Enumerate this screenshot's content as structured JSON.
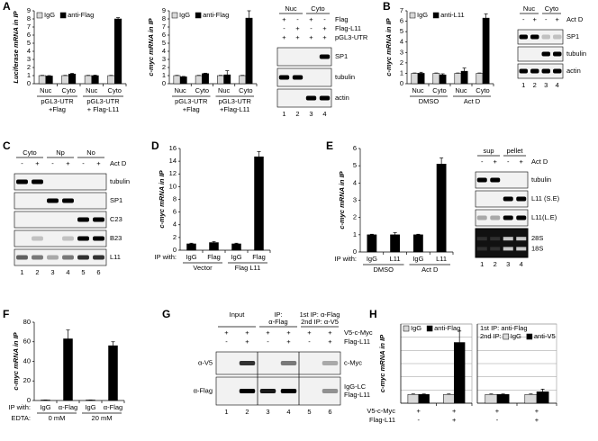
{
  "panel_letters": [
    "A",
    "B",
    "C",
    "D",
    "E",
    "F",
    "G",
    "H"
  ],
  "chart_data": [
    {
      "type": "bar",
      "y_label": "Luciferase mRNA in IP",
      "categories": [
        "Nuc",
        "Cyto",
        "Nuc",
        "Cyto"
      ],
      "group_labels": [
        [
          "pGL3-UTR",
          "+Flag"
        ],
        [
          "pGL3-UTR",
          "+ Flag-L11"
        ]
      ],
      "series": [
        {
          "name": "IgG",
          "color": "#d9d9d9",
          "values": [
            1,
            1,
            1,
            1
          ],
          "errors": [
            0.03,
            0.03,
            0.03,
            0.03
          ]
        },
        {
          "name": "anti-Flag",
          "color": "#000000",
          "values": [
            0.95,
            1.2,
            1.0,
            8.0
          ],
          "errors": [
            0.05,
            0.08,
            0.06,
            0.15
          ]
        }
      ],
      "ylim": [
        0,
        9
      ],
      "yticks": [
        0,
        1,
        2,
        3,
        4,
        5,
        6,
        7,
        8,
        9
      ]
    },
    {
      "type": "bar",
      "y_label": "c-myc mRNA in IP",
      "categories": [
        "Nuc",
        "Cyto",
        "Nuc",
        "Cyto"
      ],
      "group_labels": [
        [
          "pGL3-UTR",
          "+Flag"
        ],
        [
          "pGL3-UTR",
          "+Flag-L11"
        ]
      ],
      "series": [
        {
          "name": "IgG",
          "color": "#d9d9d9",
          "values": [
            1,
            1,
            1,
            1
          ],
          "errors": [
            0.03,
            0.03,
            0.03,
            0.03
          ]
        },
        {
          "name": "anti-Flag",
          "color": "#000000",
          "values": [
            0.85,
            1.25,
            1.1,
            8.1
          ],
          "errors": [
            0.05,
            0.05,
            0.5,
            0.9
          ]
        }
      ],
      "ylim": [
        0,
        9
      ],
      "yticks": [
        0,
        1,
        2,
        3,
        4,
        5,
        6,
        7,
        8,
        9
      ]
    },
    {
      "type": "bar",
      "y_label": "c-myc mRNA in IP",
      "categories": [
        "Nuc",
        "Cyto",
        "Nuc",
        "Cyto"
      ],
      "group_labels": [
        [
          "DMSO"
        ],
        [
          "Act D"
        ]
      ],
      "series": [
        {
          "name": "IgG",
          "color": "#d9d9d9",
          "values": [
            1,
            1,
            1,
            1
          ],
          "errors": [
            0.03,
            0.03,
            0.03,
            0.03
          ]
        },
        {
          "name": "anti-L11",
          "color": "#000000",
          "values": [
            1.0,
            0.85,
            1.2,
            6.3
          ],
          "errors": [
            0.1,
            0.1,
            0.3,
            0.4
          ]
        }
      ],
      "ylim": [
        0,
        7
      ],
      "yticks": [
        0,
        1,
        2,
        3,
        4,
        5,
        6,
        7
      ]
    },
    {
      "type": "bar",
      "y_label": "c-myc mRNA in IP",
      "row_label": "IP with:",
      "categories": [
        "IgG",
        "Flag",
        "IgG",
        "Flag"
      ],
      "group_labels": [
        [
          "Vector"
        ],
        [
          "Flag L11"
        ]
      ],
      "series": [
        {
          "color": "#000000",
          "values": [
            1,
            1.2,
            1,
            14.7
          ],
          "errors": [
            0.1,
            0.15,
            0.1,
            0.8
          ]
        }
      ],
      "ylim": [
        0,
        16
      ],
      "yticks": [
        0,
        2,
        4,
        6,
        8,
        10,
        12,
        14,
        16
      ]
    },
    {
      "type": "bar",
      "y_label": "c-myc mRNA in IP",
      "row_label": "IP with:",
      "categories": [
        "IgG",
        "L11",
        "IgG",
        "L11"
      ],
      "group_labels": [
        [
          "DMSO"
        ],
        [
          "Act D"
        ]
      ],
      "series": [
        {
          "color": "#000000",
          "values": [
            1,
            1,
            1,
            5.1
          ],
          "errors": [
            0.03,
            0.12,
            0.03,
            0.35
          ]
        }
      ],
      "ylim": [
        0,
        6
      ],
      "yticks": [
        0,
        1,
        2,
        3,
        4,
        5,
        6
      ]
    },
    {
      "type": "bar",
      "y_label": "c-myc mRNA in IP",
      "row_label": "IP with:",
      "group_prefix": "EDTA:",
      "categories": [
        "IgG",
        "α-Flag",
        "IgG",
        "α-Flag"
      ],
      "group_labels": [
        [
          "0 mM"
        ],
        [
          "20 mM"
        ]
      ],
      "series": [
        {
          "color": "#000000",
          "values": [
            0.5,
            63,
            0.5,
            56
          ],
          "errors": [
            0.1,
            9,
            0.1,
            4
          ]
        }
      ],
      "ylim": [
        0,
        80
      ],
      "yticks": [
        0,
        20,
        40,
        60,
        80
      ]
    },
    {
      "type": "bar",
      "y_label": "c-myc mRNA in IP",
      "categories": [
        null,
        null
      ],
      "show_tick_labels": false,
      "grid": true,
      "rows": [
        {
          "label": "V5-c-Myc",
          "values": [
            "+",
            "+"
          ]
        },
        {
          "label": "Flag-L11",
          "values": [
            "-",
            "+"
          ]
        }
      ],
      "series": [
        {
          "name": "IgG",
          "color": "#d9d9d9",
          "values": [
            1,
            1
          ],
          "errors": [
            0.05,
            0.05
          ]
        },
        {
          "name": "anti-Flag",
          "color": "#000000",
          "values": [
            1,
            6.9
          ],
          "errors": [
            0.05,
            1.3
          ]
        }
      ],
      "ylim": [
        0,
        9
      ],
      "yticks": [
        0,
        1.5,
        3,
        4.5,
        6,
        7.5,
        9
      ]
    },
    {
      "type": "bar",
      "categories": [
        null,
        null
      ],
      "show_tick_labels": false,
      "grid": true,
      "legend_title": "1st IP: anti-Flag",
      "legend_prefix": "2nd IP:",
      "rows": [
        {
          "values": [
            "+",
            "+"
          ]
        },
        {
          "values": [
            "-",
            "+"
          ]
        }
      ],
      "series": [
        {
          "name": "IgG",
          "color": "#d9d9d9",
          "values": [
            1,
            1
          ],
          "errors": [
            0.05,
            0.05
          ]
        },
        {
          "name": "anti-V5",
          "color": "#000000",
          "values": [
            1,
            1.3
          ],
          "errors": [
            0.05,
            0.3
          ]
        }
      ],
      "ylim": [
        0,
        9
      ],
      "yticks": [
        0,
        1.5,
        3,
        4.5,
        6,
        7.5,
        9
      ]
    }
  ],
  "blots": [
    {
      "headers": [
        [
          "Nuc"
        ],
        [
          "Cyto"
        ]
      ],
      "rows": [
        {
          "label": "Flag",
          "values": [
            "+",
            "-",
            "+",
            "-"
          ]
        },
        {
          "label": "Flag-L11",
          "values": [
            "-",
            "+",
            "-",
            "+"
          ]
        },
        {
          "label": "pGL3-UTR",
          "values": [
            "+",
            "+",
            "+",
            "+"
          ]
        }
      ],
      "bands": [
        "SP1",
        "tubulin",
        "actin"
      ],
      "lanes": [
        1,
        2,
        3,
        4
      ]
    },
    {
      "headers": [
        [
          "Nuc"
        ],
        [
          "Cyto"
        ]
      ],
      "rows": [
        {
          "label": "Act D",
          "values": [
            "-",
            "+",
            "-",
            "+"
          ]
        }
      ],
      "bands": [
        "SP1",
        "tubulin",
        "actin"
      ],
      "lanes": [
        1,
        2,
        3,
        4
      ]
    },
    {
      "headers": [
        [
          "Cyto"
        ],
        [
          "Np"
        ],
        [
          "No"
        ]
      ],
      "rows": [
        {
          "label": "Act D",
          "values": [
            "-",
            "+",
            "-",
            "+",
            "-",
            "+"
          ]
        }
      ],
      "bands": [
        "tubulin",
        "SP1",
        "C23",
        "B23",
        "L11"
      ],
      "lanes": [
        1,
        2,
        3,
        4,
        5,
        6
      ]
    },
    {
      "headers": [
        [
          "sup"
        ],
        [
          "pellet"
        ]
      ],
      "rows": [
        {
          "label": "Act D",
          "values": [
            "-",
            "+",
            "-",
            "+"
          ]
        }
      ],
      "bands": [
        "tubulin",
        "L11 (S.E)",
        "L11(L.E)"
      ],
      "gel_labels": [
        "28S",
        "18S"
      ],
      "lanes": [
        1,
        2,
        3,
        4
      ]
    },
    {
      "headers": [
        [
          "Input"
        ],
        [
          "IP:",
          "α-Flag"
        ],
        [
          "1st IP: α-Flag",
          "2nd IP: α-V5"
        ]
      ],
      "rows": [
        {
          "label": "V5-c-Myc",
          "values": [
            "+",
            "+",
            "+",
            "+",
            "+",
            "+"
          ]
        },
        {
          "label": "Flag-L11",
          "values": [
            "-",
            "+",
            "-",
            "+",
            "-",
            "+"
          ]
        }
      ],
      "bands_left": [
        "α-V5",
        "α-Flag"
      ],
      "bands_right": [
        "c-Myc",
        "IgG-LC",
        "Flag-L11"
      ],
      "lanes": [
        1,
        2,
        3,
        4,
        5,
        6
      ]
    }
  ]
}
